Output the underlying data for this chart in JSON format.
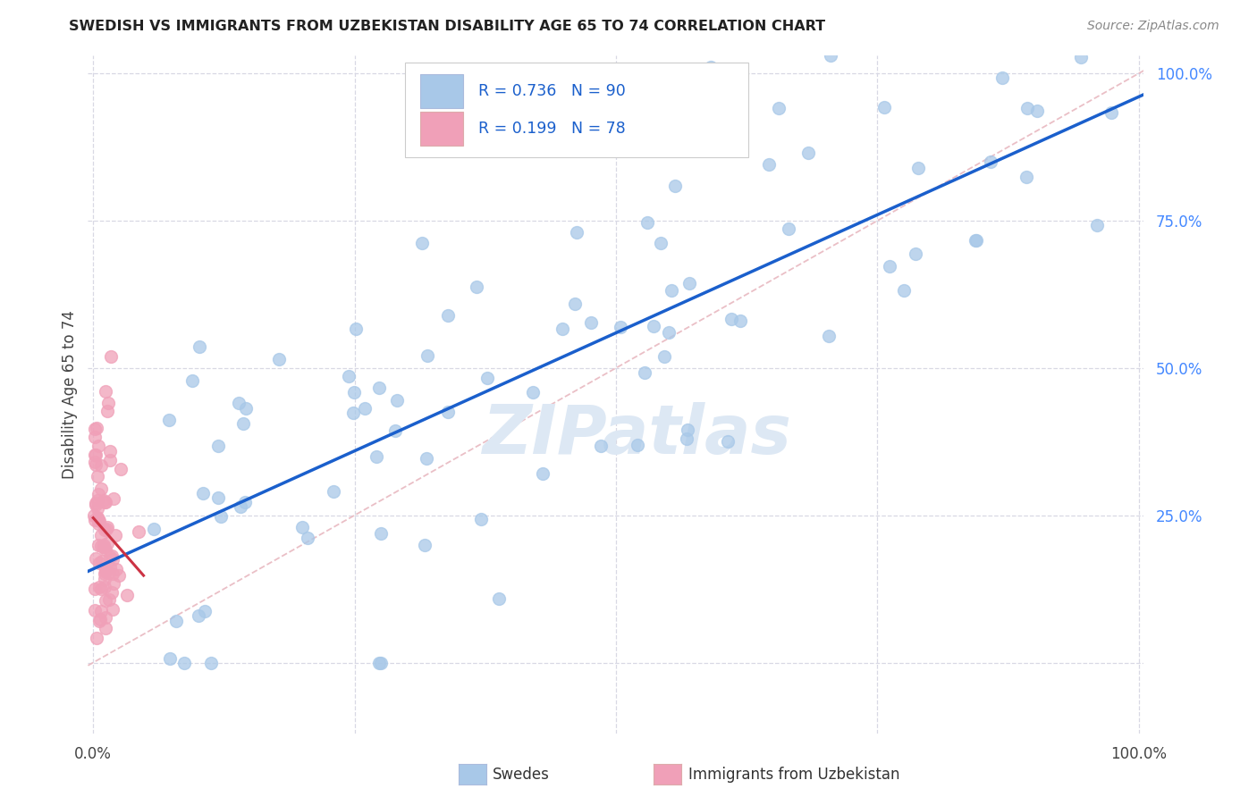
{
  "title": "SWEDISH VS IMMIGRANTS FROM UZBEKISTAN DISABILITY AGE 65 TO 74 CORRELATION CHART",
  "source": "Source: ZipAtlas.com",
  "ylabel": "Disability Age 65 to 74",
  "legend_label1": "Swedes",
  "legend_label2": "Immigrants from Uzbekistan",
  "R1": "0.736",
  "N1": "90",
  "R2": "0.199",
  "N2": "78",
  "color_swedes": "#a8c8e8",
  "color_uzbek": "#f0a0b8",
  "color_swedes_edge": "#a8c8e8",
  "color_uzbek_edge": "#f0a0b8",
  "trendline1_color": "#1a5fcc",
  "trendline2_color": "#cc3344",
  "diag_color": "#e8b8c0",
  "grid_color": "#d8d8e4",
  "background_color": "#ffffff",
  "watermark": "ZIPatlas",
  "watermark_color": "#dde8f4",
  "right_tick_color": "#4488ff",
  "title_color": "#222222",
  "source_color": "#888888",
  "legend_text_color": "#1a5fcc",
  "xlim": [
    -0.005,
    1.005
  ],
  "ylim": [
    -0.12,
    1.03
  ]
}
